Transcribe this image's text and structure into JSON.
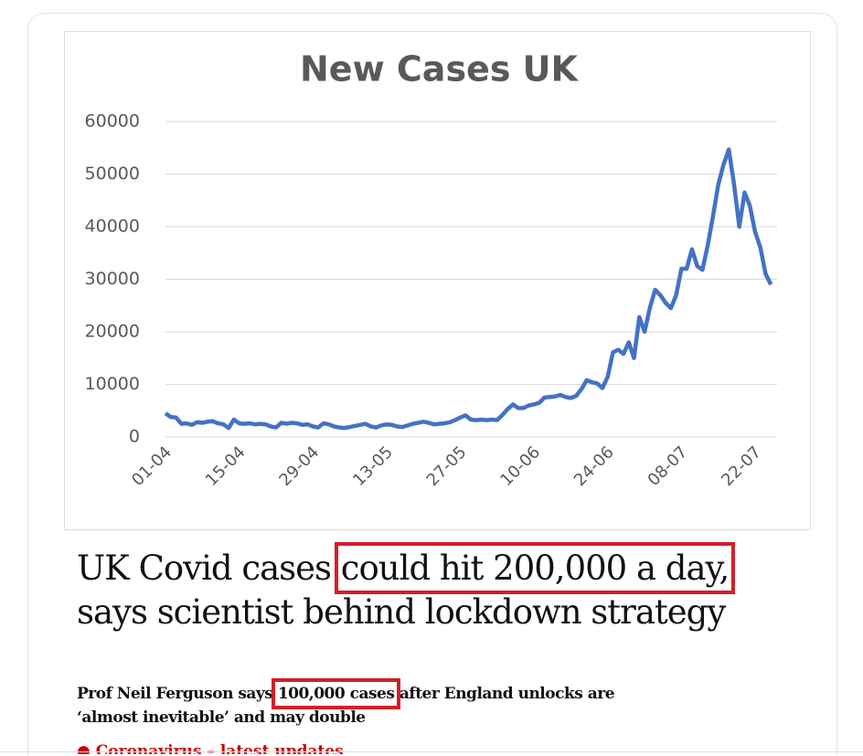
{
  "chart_data": {
    "type": "line",
    "title": "New Cases UK",
    "categories": [
      "01-04",
      null,
      null,
      null,
      null,
      null,
      null,
      null,
      null,
      null,
      null,
      null,
      null,
      null,
      "15-04",
      null,
      null,
      null,
      null,
      null,
      null,
      null,
      null,
      null,
      null,
      null,
      null,
      null,
      "29-04",
      null,
      null,
      null,
      null,
      null,
      null,
      null,
      null,
      null,
      null,
      null,
      null,
      null,
      "13-05",
      null,
      null,
      null,
      null,
      null,
      null,
      null,
      null,
      null,
      null,
      null,
      null,
      null,
      "27-05",
      null,
      null,
      null,
      null,
      null,
      null,
      null,
      null,
      null,
      null,
      null,
      null,
      null,
      "10-06",
      null,
      null,
      null,
      null,
      null,
      null,
      null,
      null,
      null,
      null,
      null,
      null,
      null,
      "24-06",
      null,
      null,
      null,
      null,
      null,
      null,
      null,
      null,
      null,
      null,
      null,
      null,
      null,
      "08-07",
      null,
      null,
      null,
      null,
      null,
      null,
      null,
      null,
      null,
      null,
      null,
      null,
      null,
      "22-07",
      null,
      null,
      null
    ],
    "values": [
      4500,
      3800,
      3700,
      2500,
      2600,
      2300,
      2800,
      2700,
      2900,
      3000,
      2600,
      2400,
      1700,
      3300,
      2600,
      2500,
      2600,
      2400,
      2500,
      2400,
      2000,
      1800,
      2700,
      2500,
      2700,
      2600,
      2300,
      2400,
      2000,
      1800,
      2600,
      2400,
      2000,
      1800,
      1700,
      1900,
      2100,
      2300,
      2500,
      2000,
      1800,
      2200,
      2400,
      2300,
      2000,
      1900,
      2200,
      2500,
      2700,
      2900,
      2700,
      2400,
      2500,
      2600,
      2800,
      3200,
      3700,
      4100,
      3300,
      3200,
      3300,
      3200,
      3300,
      3200,
      4200,
      5300,
      6200,
      5500,
      5500,
      6000,
      6200,
      6500,
      7500,
      7600,
      7700,
      8000,
      7600,
      7400,
      7800,
      9100,
      10800,
      10400,
      10200,
      9300,
      11500,
      16100,
      16600,
      15800,
      18000,
      15000,
      22800,
      20000,
      24500,
      28000,
      27000,
      25500,
      24500,
      27000,
      32000,
      32000,
      35700,
      32500,
      31800,
      36500,
      42000,
      48000,
      51800,
      54700,
      48000,
      40000,
      46500,
      44000,
      39000,
      36000,
      31000,
      29000
    ],
    "color": "#4472c4",
    "ylim": [
      0,
      60000
    ],
    "yticks": [
      0,
      10000,
      20000,
      30000,
      40000,
      50000,
      60000
    ],
    "grid": true
  },
  "headline": {
    "parts": [
      "UK Covid cases ",
      "could hit 200,000 a day,",
      "says scientist behind lockdown strategy"
    ]
  },
  "standfirst": {
    "parts": [
      "Prof Neil Ferguson says ",
      "100,000 cases",
      " after England unlocks are",
      "‘almost inevitable’ and may double"
    ]
  },
  "link": "● Coronavirus – latest updates"
}
